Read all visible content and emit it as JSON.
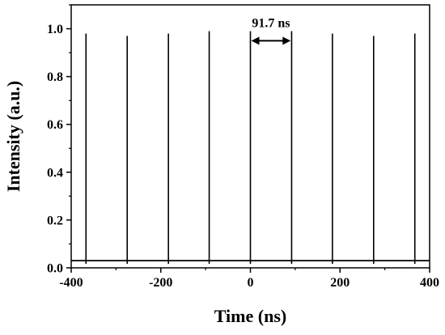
{
  "chart_data": {
    "type": "line",
    "title": "",
    "xlabel": "Time (ns)",
    "ylabel": "Intensity (a.u.)",
    "xlim": [
      -400,
      400
    ],
    "ylim": [
      0,
      1.1
    ],
    "x_ticks": [
      -400,
      -200,
      0,
      200,
      400
    ],
    "x_tick_labels": [
      "-400",
      "-200",
      "0",
      "200",
      "400"
    ],
    "y_ticks": [
      0.0,
      0.2,
      0.4,
      0.6,
      0.8,
      1.0
    ],
    "y_tick_labels": [
      "0.0",
      "0.2",
      "0.4",
      "0.6",
      "0.8",
      "1.0"
    ],
    "grid": false,
    "legend": "none",
    "baseline": 0.03,
    "series": [
      {
        "pulses": [
          {
            "x": -367,
            "y": 0.98
          },
          {
            "x": -275,
            "y": 0.97
          },
          {
            "x": -183,
            "y": 0.98
          },
          {
            "x": -92,
            "y": 0.99
          },
          {
            "x": 0,
            "y": 0.99
          },
          {
            "x": 92,
            "y": 0.99
          },
          {
            "x": 183,
            "y": 0.98
          },
          {
            "x": 275,
            "y": 0.97
          },
          {
            "x": 367,
            "y": 0.98
          }
        ]
      }
    ],
    "annotation": {
      "label": "91.7 ns",
      "x_start": 0,
      "x_end": 91.7,
      "y": 0.95
    },
    "colors": {
      "line": "#000000",
      "axis": "#000000"
    }
  }
}
